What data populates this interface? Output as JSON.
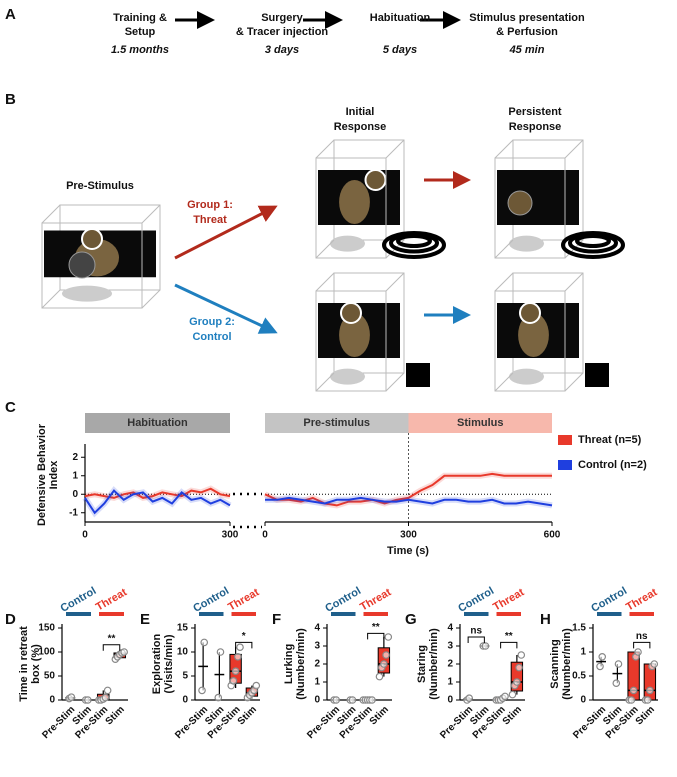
{
  "panel_labels": [
    "A",
    "B",
    "C",
    "D",
    "E",
    "F",
    "G",
    "H"
  ],
  "timeline": [
    {
      "label": [
        "Training &",
        "Setup"
      ],
      "duration": "1.5 months"
    },
    {
      "label": [
        "Surgery",
        "& Tracer injection"
      ],
      "duration": "3 days"
    },
    {
      "label": [
        "Habituation"
      ],
      "duration": "5 days"
    },
    {
      "label": [
        "Stimulus presentation",
        "& Perfusion"
      ],
      "duration": "45 min"
    }
  ],
  "schematic": {
    "pre_stimulus": "Pre-Stimulus",
    "group1": [
      "Group 1:",
      "Threat"
    ],
    "group2": [
      "Group 2:",
      "Control"
    ],
    "initial": [
      "Initial",
      "Response"
    ],
    "persistent": [
      "Persistent",
      "Response"
    ]
  },
  "chart_data": [
    {
      "type": "line",
      "ylabel": [
        "Defensive Behavior",
        "Index"
      ],
      "phases": [
        {
          "label": "Habituation",
          "color": "#a8a8a8",
          "range": [
            0,
            300
          ]
        }
      ],
      "x": [
        0,
        20,
        40,
        60,
        80,
        100,
        120,
        140,
        160,
        180,
        200,
        220,
        240,
        260,
        280,
        300
      ],
      "series": [
        {
          "color": "#e8392b",
          "values": [
            -0.1,
            0,
            -0.1,
            -0.2,
            0,
            0.1,
            -0.2,
            -0.1,
            0.1,
            0,
            -0.1,
            0.2,
            0.1,
            0.3,
            0,
            -0.1
          ]
        },
        {
          "color": "#1f3fdf",
          "values": [
            -0.2,
            -1,
            -0.5,
            0.2,
            -0.3,
            0,
            0.1,
            -0.4,
            -0.2,
            -0.5,
            0.1,
            -0.3,
            -0.2,
            -0.5,
            -0.3,
            -0.6
          ]
        }
      ],
      "hline": 0,
      "xlim": [
        0,
        300
      ],
      "xticks": [
        0,
        300
      ],
      "ylim": [
        -1.5,
        2.5
      ],
      "yticks": [
        -1,
        0,
        1,
        2
      ]
    },
    {
      "type": "line",
      "xlabel": "Time (s)",
      "legend": "right",
      "phases": [
        {
          "label": "Pre-stimulus",
          "color": "#c4c4c4",
          "range": [
            0,
            300
          ]
        },
        {
          "label": "Stimulus",
          "color": "#f7b8ac",
          "range": [
            300,
            600
          ]
        }
      ],
      "x": [
        0,
        25,
        50,
        75,
        100,
        125,
        150,
        175,
        200,
        225,
        250,
        275,
        300,
        325,
        350,
        375,
        400,
        425,
        450,
        475,
        500,
        525,
        550,
        575,
        600
      ],
      "series": [
        {
          "name": "Threat (n=5)",
          "color": "#e8392b",
          "values": [
            0,
            -0.3,
            -0.3,
            -0.4,
            -0.2,
            -0.5,
            -0.6,
            -0.4,
            -0.4,
            -0.3,
            -0.5,
            -0.3,
            -0.2,
            0.2,
            0.5,
            1.0,
            1.0,
            1.0,
            1.0,
            1.1,
            1.0,
            1.0,
            1.0,
            1.0,
            1.0
          ]
        },
        {
          "name": "Control (n=2)",
          "color": "#1f3fdf",
          "values": [
            -0.3,
            -0.3,
            -0.2,
            -0.3,
            -0.4,
            -0.5,
            -0.3,
            -0.3,
            -0.2,
            -0.3,
            -0.4,
            -0.4,
            -0.3,
            -0.4,
            -0.5,
            -0.3,
            -0.3,
            -0.4,
            -0.4,
            -0.3,
            -0.5,
            -0.5,
            -0.4,
            -0.5,
            -0.6
          ]
        }
      ],
      "hline": 0,
      "xlim": [
        0,
        600
      ],
      "xticks": [
        0,
        300,
        600
      ],
      "ylim": [
        -1.5,
        2.5
      ]
    },
    {
      "type": "box",
      "ylabel": [
        "Time in retreat",
        "box (%)"
      ],
      "categories": [
        "Pre-Stim",
        "Stim",
        "Pre-Stim",
        "Stim"
      ],
      "groups": [
        {
          "name": "Control",
          "color": "#1f5f8b",
          "style": "cross"
        },
        {
          "name": "Threat",
          "color": "#e8392b",
          "style": "box"
        }
      ],
      "boxes": [
        {
          "min": 3,
          "q1": 3,
          "median": 4.5,
          "q3": 6,
          "max": 6,
          "points": [
            3,
            6
          ]
        },
        {
          "min": 0,
          "q1": 0,
          "median": 0,
          "q3": 0,
          "max": 0,
          "points": [
            0,
            0
          ]
        },
        {
          "min": 0,
          "q1": 0,
          "median": 2,
          "q3": 12,
          "max": 20,
          "points": [
            0,
            0,
            2,
            5,
            20
          ]
        },
        {
          "min": 85,
          "q1": 88,
          "median": 95,
          "q3": 98,
          "max": 100,
          "points": [
            85,
            90,
            95,
            98,
            100
          ]
        }
      ],
      "annotations": [
        {
          "text": "**",
          "between": [
            2,
            3
          ],
          "y": 115
        }
      ],
      "ylim": [
        0,
        150
      ],
      "yticks": [
        0,
        50,
        100,
        150
      ]
    },
    {
      "type": "box",
      "ylabel": [
        "Exploration",
        "(Visits/min)"
      ],
      "categories": [
        "Pre-Stim",
        "Stim",
        "Pre-Stim",
        "Stim"
      ],
      "groups": [
        {
          "name": "Control",
          "color": "#1f5f8b",
          "style": "cross"
        },
        {
          "name": "Threat",
          "color": "#e8392b",
          "style": "box"
        }
      ],
      "boxes": [
        {
          "min": 2,
          "q1": 2,
          "median": 7,
          "q3": 12,
          "max": 12,
          "points": [
            2,
            12
          ]
        },
        {
          "min": 0.5,
          "q1": 0.5,
          "median": 5.3,
          "q3": 10,
          "max": 10,
          "points": [
            0.5,
            10
          ]
        },
        {
          "min": 2.5,
          "q1": 3.5,
          "median": 6,
          "q3": 9.5,
          "max": 11,
          "points": [
            3,
            4,
            6,
            9,
            11
          ]
        },
        {
          "min": 0.3,
          "q1": 0.8,
          "median": 1.5,
          "q3": 2.5,
          "max": 3,
          "points": [
            0.5,
            1,
            1.5,
            2,
            3
          ]
        }
      ],
      "annotations": [
        {
          "text": "*",
          "between": [
            2,
            3
          ],
          "y": 12
        }
      ],
      "ylim": [
        0,
        15
      ],
      "yticks": [
        0,
        5,
        10,
        15
      ]
    },
    {
      "type": "box",
      "ylabel": [
        "Lurking",
        "(Number/min)"
      ],
      "categories": [
        "Pre-Stim",
        "Stim",
        "Pre-Stim",
        "Stim"
      ],
      "groups": [
        {
          "name": "Control",
          "color": "#1f5f8b",
          "style": "cross"
        },
        {
          "name": "Threat",
          "color": "#e8392b",
          "style": "box"
        }
      ],
      "boxes": [
        {
          "min": 0,
          "q1": 0,
          "median": 0,
          "q3": 0,
          "max": 0,
          "points": [
            0,
            0
          ]
        },
        {
          "min": 0,
          "q1": 0,
          "median": 0,
          "q3": 0,
          "max": 0,
          "points": [
            0,
            0
          ]
        },
        {
          "min": 0,
          "q1": 0,
          "median": 0,
          "q3": 0,
          "max": 0,
          "points": [
            0,
            0,
            0,
            0,
            0
          ]
        },
        {
          "min": 1.3,
          "q1": 1.5,
          "median": 2,
          "q3": 2.9,
          "max": 3.5,
          "points": [
            1.3,
            1.8,
            2,
            2.5,
            3.5
          ]
        }
      ],
      "annotations": [
        {
          "text": "**",
          "between": [
            2,
            3
          ],
          "y": 3.7
        }
      ],
      "ylim": [
        0,
        4
      ],
      "yticks": [
        0,
        1,
        2,
        3,
        4
      ]
    },
    {
      "type": "box",
      "ylabel": [
        "Staring",
        "(Number/min)"
      ],
      "categories": [
        "Pre-Stim",
        "Stim",
        "Pre-Stim",
        "Stim"
      ],
      "groups": [
        {
          "name": "Control",
          "color": "#1f5f8b",
          "style": "cross"
        },
        {
          "name": "Threat",
          "color": "#e8392b",
          "style": "box"
        }
      ],
      "boxes": [
        {
          "min": 0,
          "q1": 0,
          "median": 0.05,
          "q3": 0.1,
          "max": 0.1,
          "points": [
            0,
            0.1
          ]
        },
        {
          "min": 3,
          "q1": 3,
          "median": 3,
          "q3": 3,
          "max": 3,
          "points": [
            3,
            3
          ]
        },
        {
          "min": 0,
          "q1": 0,
          "median": 0,
          "q3": 0.1,
          "max": 0.2,
          "points": [
            0,
            0,
            0,
            0.1,
            0.2
          ]
        },
        {
          "min": 0.3,
          "q1": 0.5,
          "median": 1,
          "q3": 2.1,
          "max": 2.5,
          "points": [
            0.3,
            0.8,
            1,
            1.8,
            2.5
          ]
        }
      ],
      "annotations": [
        {
          "text": "ns",
          "between": [
            0,
            1
          ],
          "y": 3.5
        },
        {
          "text": "**",
          "between": [
            2,
            3
          ],
          "y": 3.2
        }
      ],
      "ylim": [
        0,
        4
      ],
      "yticks": [
        0,
        1,
        2,
        3,
        4
      ]
    },
    {
      "type": "box",
      "ylabel": [
        "Scanning",
        "(Number/min)"
      ],
      "categories": [
        "Pre-Stim",
        "Stim",
        "Pre-Stim",
        "Stim"
      ],
      "groups": [
        {
          "name": "Control",
          "color": "#1f5f8b",
          "style": "cross"
        },
        {
          "name": "Threat",
          "color": "#e8392b",
          "style": "box"
        }
      ],
      "boxes": [
        {
          "min": 0.7,
          "q1": 0.7,
          "median": 0.8,
          "q3": 0.9,
          "max": 0.9,
          "points": [
            0.7,
            0.9
          ]
        },
        {
          "min": 0.35,
          "q1": 0.35,
          "median": 0.55,
          "q3": 0.75,
          "max": 0.75,
          "points": [
            0.35,
            0.75
          ]
        },
        {
          "min": 0,
          "q1": 0,
          "median": 0.2,
          "q3": 1,
          "max": 1,
          "points": [
            0,
            0,
            0.2,
            0.9,
            1
          ]
        },
        {
          "min": 0,
          "q1": 0,
          "median": 0.2,
          "q3": 0.75,
          "max": 0.75,
          "points": [
            0,
            0,
            0.2,
            0.7,
            0.75
          ]
        }
      ],
      "annotations": [
        {
          "text": "ns",
          "between": [
            2,
            3
          ],
          "y": 1.2
        }
      ],
      "ylim": [
        0,
        1.5
      ],
      "yticks": [
        0,
        0.5,
        1,
        1.5
      ]
    }
  ]
}
